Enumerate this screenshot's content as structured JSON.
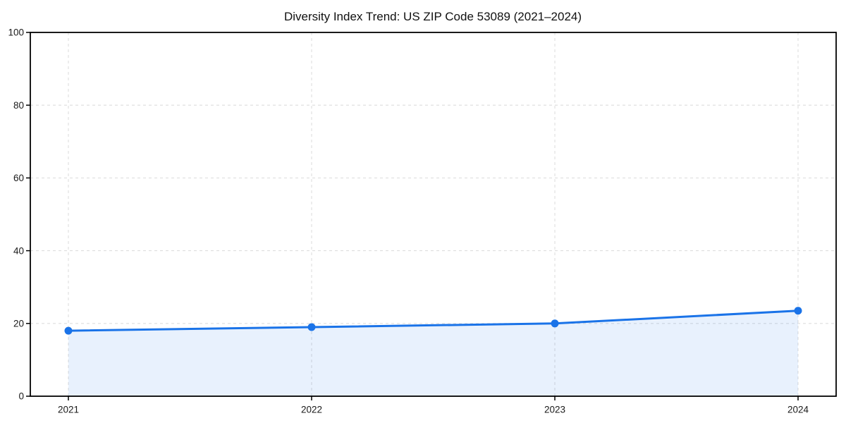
{
  "chart_data": {
    "type": "line",
    "title": "Diversity Index Trend: US ZIP Code 53089 (2021–2024)",
    "categories": [
      "2021",
      "2022",
      "2023",
      "2024"
    ],
    "x": [
      2021,
      2022,
      2023,
      2024
    ],
    "series": [
      {
        "name": "Diversity Index",
        "values": [
          18,
          19,
          20,
          23.5
        ]
      }
    ],
    "xlabel": "",
    "ylabel": "",
    "ylim": [
      0,
      100
    ],
    "yticks": [
      0,
      20,
      40,
      60,
      80,
      100
    ],
    "grid": true,
    "grid_style": "dashed",
    "legend_position": "none",
    "area_fill": true,
    "markers": true,
    "colors": {
      "line": "#1a73e8",
      "marker": "#1a73e8",
      "area_fill": "rgba(26,115,232,0.10)",
      "grid": "#dedede",
      "spine": "#000000",
      "tick": "#000000",
      "tick_label": "#1a1a1a",
      "title": "#111111",
      "background": "#ffffff"
    }
  }
}
